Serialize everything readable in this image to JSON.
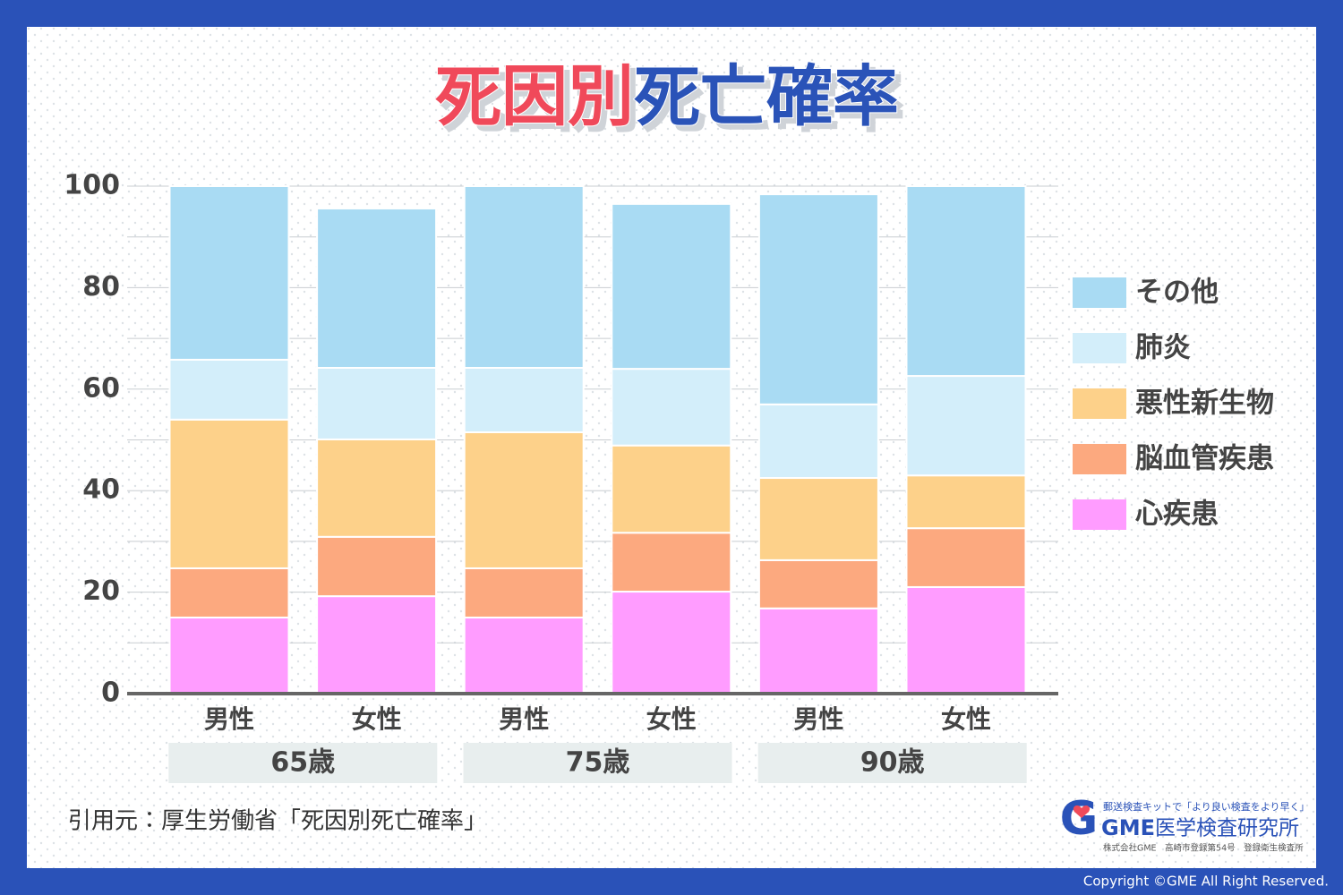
{
  "chart_data": {
    "type": "stacked_bar",
    "title": [
      "死因別",
      "死亡確率"
    ],
    "title_colors": [
      "#f04a5a",
      "#2a52b8"
    ],
    "categories": [
      "男性",
      "女性",
      "男性",
      "女性",
      "男性",
      "女性"
    ],
    "groups": [
      "65歳",
      "75歳",
      "90歳"
    ],
    "series": [
      {
        "name": "心疾患",
        "color": "#ff9cff",
        "values": [
          15.0,
          19.2,
          15.0,
          20.1,
          16.8,
          21.0
        ]
      },
      {
        "name": "脳血管疾患",
        "color": "#fca97f",
        "values": [
          9.7,
          11.7,
          9.7,
          11.6,
          9.5,
          11.6
        ]
      },
      {
        "name": "悪性新生物",
        "color": "#fdd18a",
        "values": [
          29.3,
          19.2,
          26.8,
          17.2,
          16.2,
          10.4
        ]
      },
      {
        "name": "肺炎",
        "color": "#d3eefa",
        "values": [
          11.8,
          14.1,
          12.7,
          15.1,
          14.5,
          19.6
        ]
      },
      {
        "name": "その他",
        "color": "#a9dbf3",
        "values": [
          34.2,
          31.4,
          35.8,
          32.5,
          41.4,
          37.4
        ]
      }
    ],
    "ylim": [
      0,
      100
    ],
    "yticks": [
      0,
      20,
      40,
      60,
      80,
      100
    ],
    "minor_yticks": [
      10,
      30,
      50,
      70,
      90
    ],
    "grid": true,
    "legend": "right",
    "source": "引用元：厚生労働省「死因別死亡確率」",
    "logo": {
      "tagline": "郵送検査キットで「より良い検査をより早く」",
      "brand": "GME",
      "name": "医学検査研究所",
      "registration": "株式会社GME　高崎市登録第54号　登録衛生検査所"
    },
    "copyright": "Copyright ©GME All Right Reserved."
  }
}
